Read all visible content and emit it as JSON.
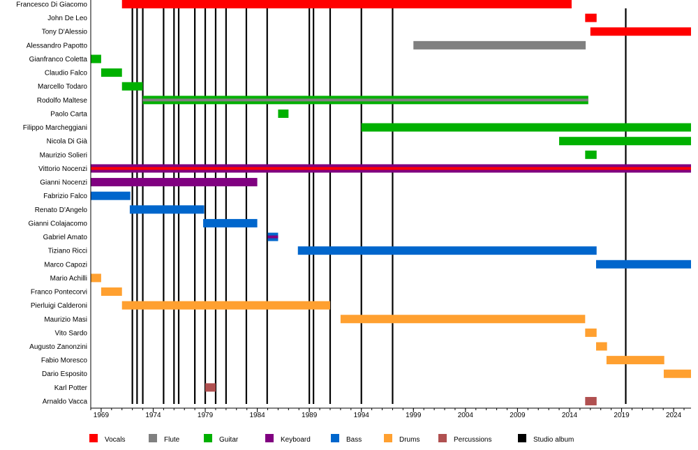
{
  "chart_data": {
    "type": "timeline",
    "title": "",
    "xlim": [
      1968.0,
      2025.67
    ],
    "x_ticks": [
      1969,
      1974,
      1979,
      1984,
      1989,
      1994,
      1999,
      2004,
      2009,
      2014,
      2019,
      2024
    ],
    "minor_tick_interval_years": 1,
    "colors": {
      "Vocals": "#FF0000",
      "Flute": "#808080",
      "Guitar": "#00B000",
      "Keyboard": "#800080",
      "Bass": "#0066CC",
      "Drums": "#FFA030",
      "Percussions": "#B05050",
      "Studio album": "#000000"
    },
    "legend": [
      "Vocals",
      "Flute",
      "Guitar",
      "Keyboard",
      "Bass",
      "Drums",
      "Percussions",
      "Studio album"
    ],
    "legend_position": "bottom",
    "members": [
      {
        "name": "Francesco Di Giacomo",
        "role": "Vocals",
        "start": 1971.0,
        "end": 2014.2
      },
      {
        "name": "John De Leo",
        "role": "Vocals",
        "start": 2015.5,
        "end": 2016.6
      },
      {
        "name": "Tony D'Alessio",
        "role": "Vocals",
        "start": 2016.0,
        "end": 2025.67
      },
      {
        "name": "Alessandro Papotto",
        "role": "Flute",
        "start": 1999.0,
        "end": 2015.55
      },
      {
        "name": "Gianfranco Coletta",
        "role": "Guitar",
        "start": 1968.0,
        "end": 1969.0
      },
      {
        "name": "Claudio Falco",
        "role": "Guitar",
        "start": 1969.0,
        "end": 1971.0
      },
      {
        "name": "Marcello Todaro",
        "role": "Guitar",
        "start": 1971.0,
        "end": 1973.0
      },
      {
        "name": "Rodolfo Maltese",
        "role": "Guitar",
        "second_role": "Flute",
        "start": 1973.0,
        "end": 2015.8
      },
      {
        "name": "Paolo Carta",
        "role": "Guitar",
        "start": 1986.0,
        "end": 1987.0
      },
      {
        "name": "Filippo Marcheggiani",
        "role": "Guitar",
        "start": 1994.0,
        "end": 2025.67
      },
      {
        "name": "Nicola Di Già",
        "role": "Guitar",
        "start": 2013.0,
        "end": 2025.67
      },
      {
        "name": "Maurizio Solieri",
        "role": "Guitar",
        "start": 2015.5,
        "end": 2016.6
      },
      {
        "name": "Vittorio Nocenzi",
        "role": "Keyboard",
        "second_role": "Vocals",
        "start": 1968.0,
        "end": 2025.67
      },
      {
        "name": "Gianni Nocenzi",
        "role": "Keyboard",
        "start": 1968.0,
        "end": 1984.0
      },
      {
        "name": "Fabrizio Falco",
        "role": "Bass",
        "start": 1968.0,
        "end": 1971.8
      },
      {
        "name": "Renato D'Angelo",
        "role": "Bass",
        "start": 1971.75,
        "end": 1978.9
      },
      {
        "name": "Gianni Colajacomo",
        "role": "Bass",
        "start": 1978.8,
        "end": 1984.0
      },
      {
        "name": "Gabriel Amato",
        "role": "Bass",
        "second_role": "Keyboard",
        "start": 1985.0,
        "end": 1986.0
      },
      {
        "name": "Tiziano Ricci",
        "role": "Bass",
        "start": 1987.9,
        "end": 2016.6
      },
      {
        "name": "Marco Capozi",
        "role": "Bass",
        "start": 2016.55,
        "end": 2025.67
      },
      {
        "name": "Mario Achilli",
        "role": "Drums",
        "start": 1968.0,
        "end": 1969.0
      },
      {
        "name": "Franco Pontecorvi",
        "role": "Drums",
        "start": 1969.0,
        "end": 1971.0
      },
      {
        "name": "Pierluigi Calderoni",
        "role": "Drums",
        "start": 1971.0,
        "end": 1991.0
      },
      {
        "name": "Maurizio Masi",
        "role": "Drums",
        "start": 1992.0,
        "end": 2015.5
      },
      {
        "name": "Vito Sardo",
        "role": "Drums",
        "start": 2015.5,
        "end": 2016.6
      },
      {
        "name": "Augusto Zanonzini",
        "role": "Drums",
        "start": 2016.55,
        "end": 2017.6
      },
      {
        "name": "Fabio Moresco",
        "role": "Drums",
        "start": 2017.55,
        "end": 2023.1
      },
      {
        "name": "Dario Esposito",
        "role": "Drums",
        "start": 2023.05,
        "end": 2025.67
      },
      {
        "name": "Karl Potter",
        "role": "Percussions",
        "start": 1979.0,
        "end": 1980.0
      },
      {
        "name": "Arnaldo Vacca",
        "role": "Percussions",
        "start": 2015.5,
        "end": 2016.6
      }
    ],
    "studio_albums": [
      1972.0,
      1972.45,
      1973.0,
      1975.0,
      1976.0,
      1976.45,
      1978.0,
      1979.0,
      1980.0,
      1981.0,
      1982.95,
      1984.95,
      1989.0,
      1989.4,
      1991.0,
      1994.0,
      1997.0,
      2019.4
    ]
  }
}
